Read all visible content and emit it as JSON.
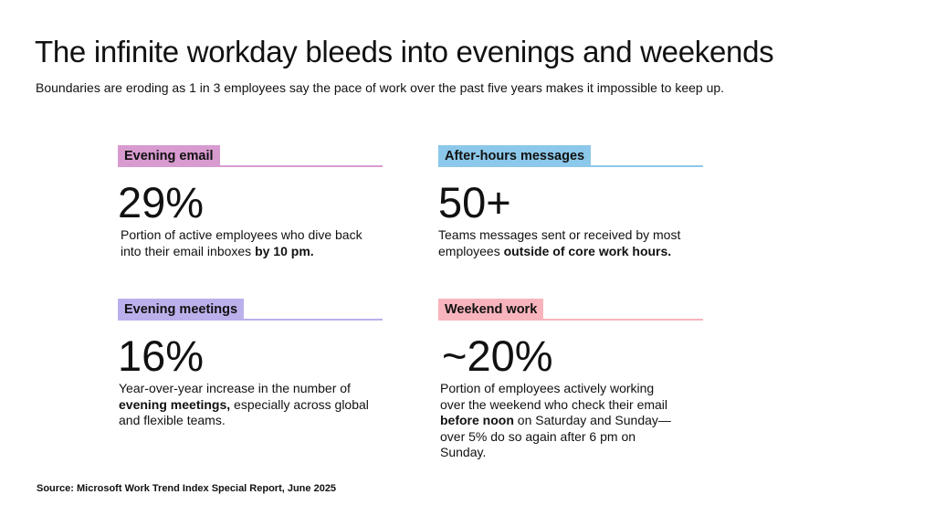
{
  "title": "The infinite workday bleeds into evenings and weekends",
  "subtitle": "Boundaries are eroding as 1 in 3 employees say the pace of work over the past five years makes it impossible to keep up.",
  "cards": [
    {
      "label": "Evening email",
      "label_color": "#d89bd0",
      "rule_color": "#d89bd0",
      "stat": "29%",
      "desc_pre": "Portion of active employees who dive back into their email inboxes ",
      "desc_bold": "by 10 pm.",
      "desc_post": ""
    },
    {
      "label": "After-hours messages",
      "label_color": "#8cc8ea",
      "rule_color": "#8cc8ea",
      "stat": "50+",
      "desc_pre": "Teams messages sent or received by most employees ",
      "desc_bold": "outside of core work hours.",
      "desc_post": ""
    },
    {
      "label": "Evening meetings",
      "label_color": "#bcb0ec",
      "rule_color": "#bcb0ec",
      "stat": "16%",
      "desc_pre": "Year-over-year increase in the number of ",
      "desc_bold": "evening meetings,",
      "desc_post": " especially across global and flexible teams."
    },
    {
      "label": "Weekend work",
      "label_color": "#f8b4bc",
      "rule_color": "#f8b4bc",
      "stat": "~20%",
      "desc_pre": "Portion of employees actively working over the weekend who check their email ",
      "desc_bold": "before noon",
      "desc_post": " on Saturday and Sunday—over 5% do so again after 6 pm on Sunday."
    }
  ],
  "source": "Source: Microsoft Work Trend Index Special Report, June 2025"
}
